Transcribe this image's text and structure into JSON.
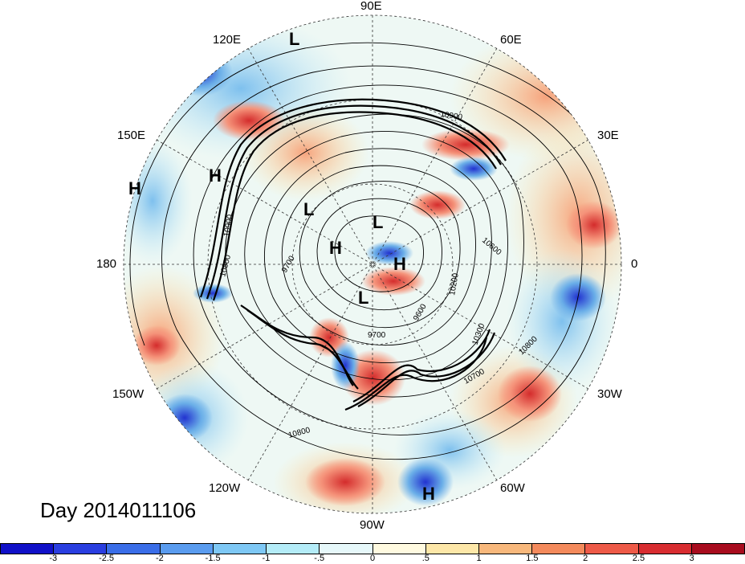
{
  "title": "Day 2014011106",
  "longitude_labels": {
    "n90e": "90E",
    "n60e": "60E",
    "n30e": "30E",
    "n0": "0",
    "n30w": "30W",
    "n60w": "60W",
    "n90w": "90W",
    "n120w": "120W",
    "n150w": "150W",
    "n180": "180",
    "n150e": "150E",
    "n120e": "120E"
  },
  "pressure_centers": [
    {
      "name": "L",
      "id": "l1"
    },
    {
      "name": "H",
      "id": "h1"
    },
    {
      "name": "H",
      "id": "h2"
    },
    {
      "name": "L",
      "id": "l2"
    },
    {
      "name": "L",
      "id": "l3"
    },
    {
      "name": "H",
      "id": "h3"
    },
    {
      "name": "H",
      "id": "h4"
    },
    {
      "name": "L",
      "id": "l4"
    },
    {
      "name": "H",
      "id": "h5"
    }
  ],
  "contour_labels": {
    "c10900a": "10900",
    "c10900b": "10900",
    "c10800a": "10800",
    "c9700a": "9700",
    "c10600": "10600",
    "c10200": "10200",
    "c9600": "9600",
    "c9700b": "9700",
    "c10300": "10300",
    "c10800b": "10800",
    "c10700": "10700",
    "c10800c": "10800"
  },
  "colorbar": {
    "colors": [
      "#1010c8",
      "#2a3ee0",
      "#3a6ee8",
      "#5a9cef",
      "#7ec8f5",
      "#b4ecf8",
      "#e6f8fa",
      "#fffae0",
      "#fde7a8",
      "#f8b87c",
      "#f48a5c",
      "#ee5a48",
      "#d82c30",
      "#a80c1e"
    ],
    "ticks": [
      "-3",
      "-2.5",
      "-2",
      "-1.5",
      "-1",
      "-.5",
      "0",
      ".5",
      "1",
      "1.5",
      "2",
      "2.5",
      "3"
    ]
  }
}
